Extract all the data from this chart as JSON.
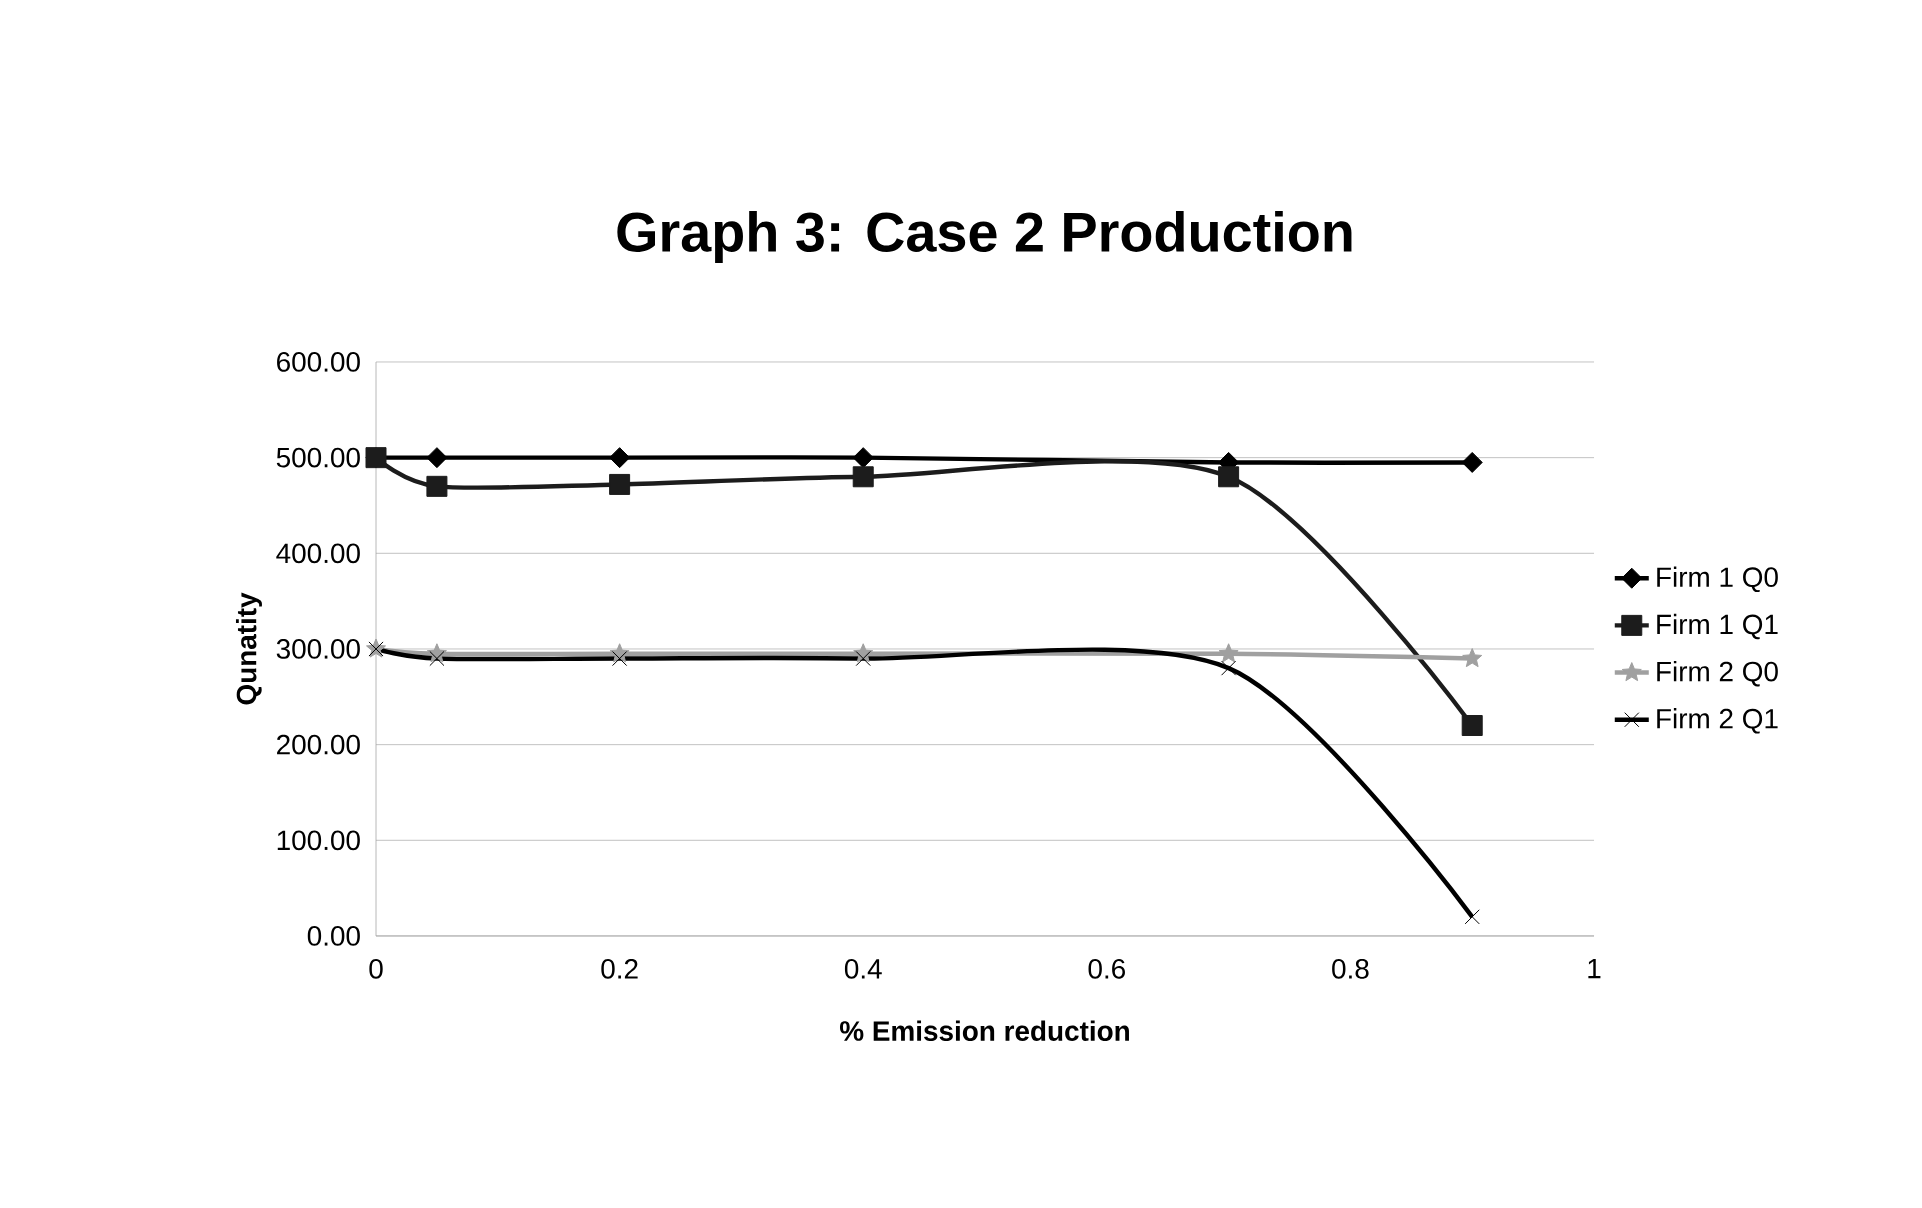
{
  "chart_data": {
    "type": "line",
    "title": "Graph 3: Case 2 Production",
    "xlabel": "% Emission reduction",
    "ylabel": "Qunatity",
    "x": [
      0,
      0.05,
      0.2,
      0.4,
      0.7,
      0.9
    ],
    "series": [
      {
        "name": "Firm 1 Q0",
        "color": "#000000",
        "marker": "diamond",
        "values": [
          500,
          500,
          500,
          500,
          495,
          495
        ]
      },
      {
        "name": "Firm 1 Q1",
        "color": "#1c1c1c",
        "marker": "square",
        "values": [
          500,
          470,
          472,
          480,
          480,
          220
        ]
      },
      {
        "name": "Firm 2 Q0",
        "color": "#a0a0a0",
        "marker": "star",
        "values": [
          300,
          295,
          295,
          295,
          295,
          290
        ]
      },
      {
        "name": "Firm 2 Q1",
        "color": "#000000",
        "marker": "cross",
        "values": [
          300,
          290,
          290,
          290,
          280,
          20
        ]
      }
    ],
    "xlim": [
      0,
      1
    ],
    "xticks": [
      0,
      0.2,
      0.4,
      0.6,
      0.8,
      1
    ],
    "ylim": [
      0,
      600
    ],
    "yticks": [
      {
        "value": 0,
        "label": "0.00"
      },
      {
        "value": 100,
        "label": "100.00"
      },
      {
        "value": 200,
        "label": "200.00"
      },
      {
        "value": 300,
        "label": "300.00"
      },
      {
        "value": 400,
        "label": "400.00"
      },
      {
        "value": 500,
        "label": "500.00"
      },
      {
        "value": 600,
        "label": "600.00"
      }
    ],
    "grid": "y",
    "legend": "right",
    "line_style": "solid"
  }
}
